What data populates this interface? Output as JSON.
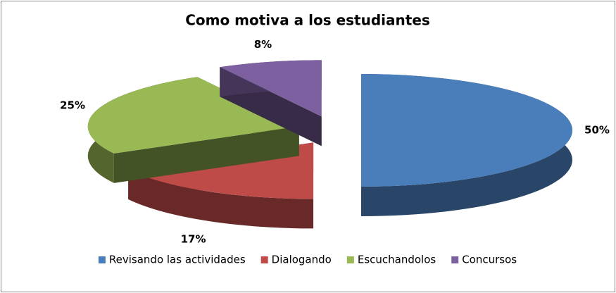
{
  "chart_data": {
    "type": "pie",
    "title": "Como motiva a los estudiantes",
    "categories": [
      "Revisando las actividades",
      "Dialogando",
      "Escuchandolos",
      "Concursos"
    ],
    "values": [
      50,
      17,
      25,
      8
    ],
    "value_labels": [
      "50%",
      "17%",
      "25%",
      "8%"
    ],
    "colors": [
      "#4a7ebb",
      "#be4b48",
      "#98b954",
      "#7d60a0"
    ],
    "legend": "bottom"
  }
}
